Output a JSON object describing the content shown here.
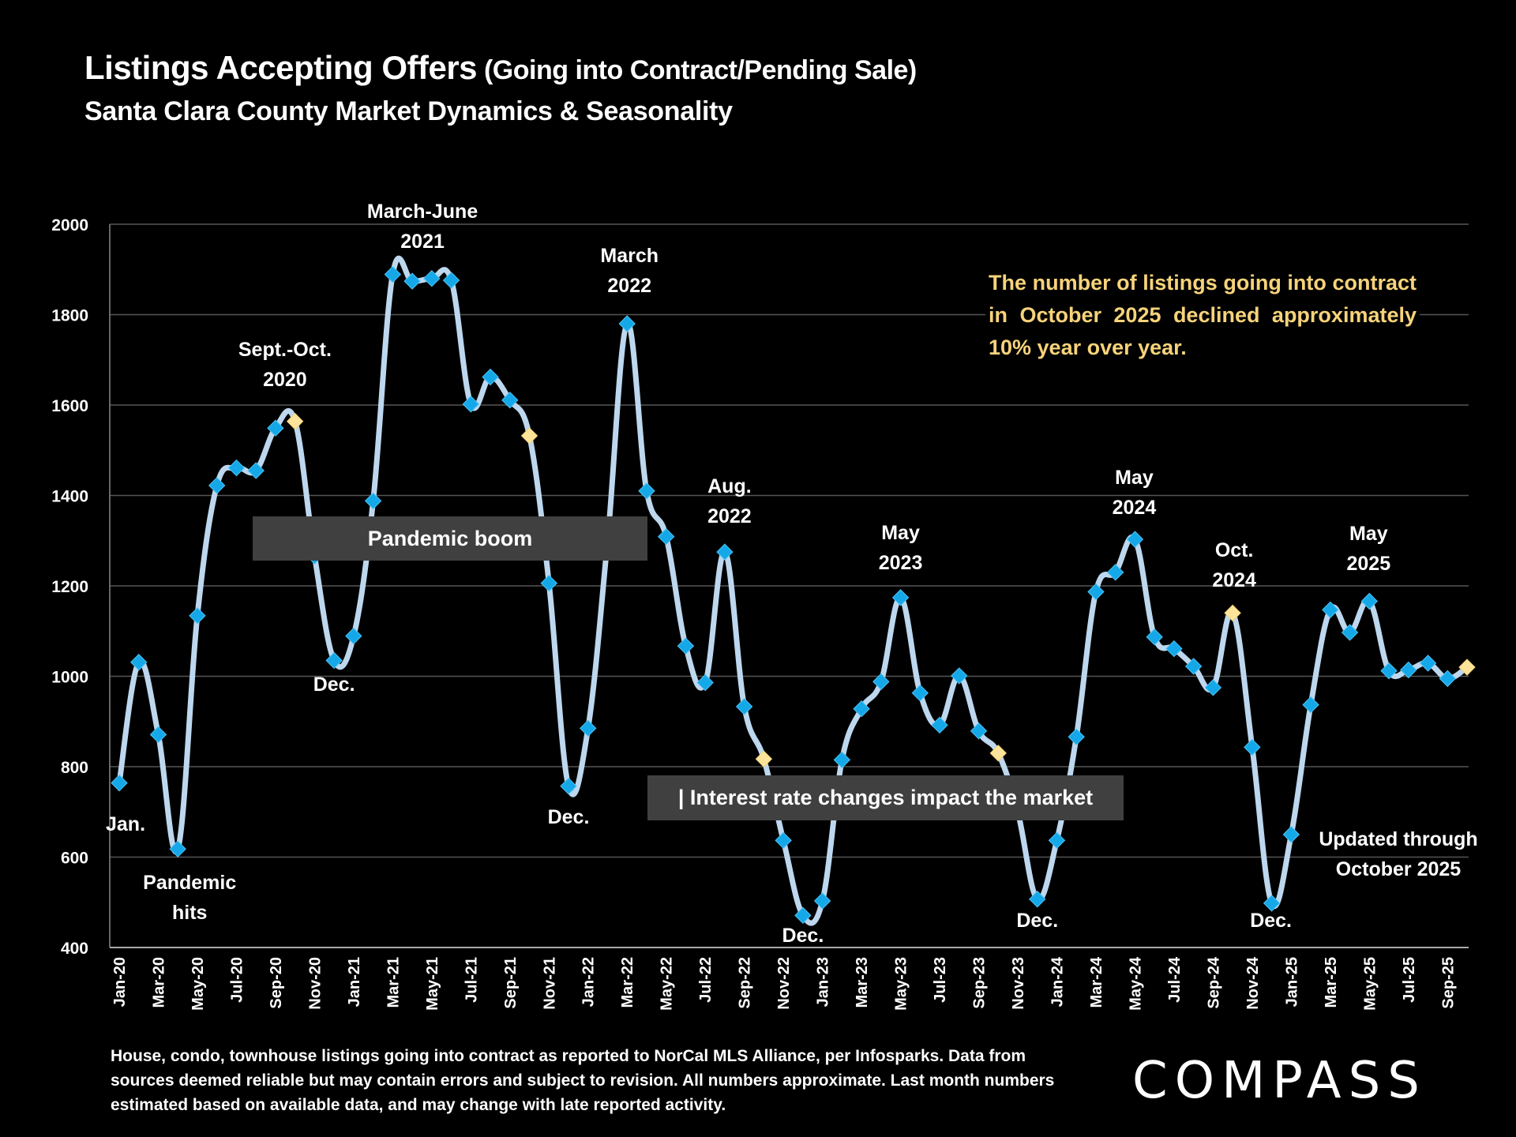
{
  "header": {
    "title": "Listings Accepting Offers",
    "title_suffix": " (Going into Contract/Pending Sale)",
    "subtitle": "Santa Clara County Market Dynamics & Seasonality"
  },
  "callout": "The number of listings going into contract in October 2025 declined approximately 10% year over year.",
  "bands": {
    "pandemic": "Pandemic boom",
    "rates": "| Interest rate changes impact the market"
  },
  "footnote": "House, condo, townhouse listings going into contract as reported to NorCal MLS Alliance, per Infosparks. Data from sources deemed reliable but may contain errors and subject to revision. All numbers approximate. Last month numbers estimated based on available data, and may change with late reported activity.",
  "logo": "COMPASS",
  "colors": {
    "line": "#bdd7ee",
    "marker": "#15a8e8",
    "marker_highlight": "#fde49a",
    "callout_text": "#f7d37a",
    "band_bg": "#404040",
    "grid": "#555555"
  },
  "chart_data": {
    "type": "line",
    "title": "Listings Accepting Offers (Going into Contract/Pending Sale)",
    "subtitle": "Santa Clara County Market Dynamics & Seasonality",
    "xlabel": "",
    "ylabel": "",
    "ylim": [
      400,
      2000
    ],
    "yticks": [
      400,
      600,
      800,
      1000,
      1200,
      1400,
      1600,
      1800,
      2000
    ],
    "grid": true,
    "x": [
      "Jan-20",
      "Feb-20",
      "Mar-20",
      "Apr-20",
      "May-20",
      "Jun-20",
      "Jul-20",
      "Aug-20",
      "Sep-20",
      "Oct-20",
      "Nov-20",
      "Dec-20",
      "Jan-21",
      "Feb-21",
      "Mar-21",
      "Apr-21",
      "May-21",
      "Jun-21",
      "Jul-21",
      "Aug-21",
      "Sep-21",
      "Oct-21",
      "Nov-21",
      "Dec-21",
      "Jan-22",
      "Feb-22",
      "Mar-22",
      "Apr-22",
      "May-22",
      "Jun-22",
      "Jul-22",
      "Aug-22",
      "Sep-22",
      "Oct-22",
      "Nov-22",
      "Dec-22",
      "Jan-23",
      "Feb-23",
      "Mar-23",
      "Apr-23",
      "May-23",
      "Jun-23",
      "Jul-23",
      "Aug-23",
      "Sep-23",
      "Oct-23",
      "Nov-23",
      "Dec-23",
      "Jan-24",
      "Feb-24",
      "Mar-24",
      "Apr-24",
      "May-24",
      "Jun-24",
      "Jul-24",
      "Aug-24",
      "Sep-24",
      "Oct-24",
      "Nov-24",
      "Dec-24",
      "Jan-25",
      "Feb-25",
      "Mar-25",
      "Apr-25",
      "May-25",
      "Jun-25",
      "Jul-25",
      "Aug-25",
      "Sep-25",
      "Oct-25"
    ],
    "xtick_labels": [
      "Jan-20",
      "Mar-20",
      "May-20",
      "Jul-20",
      "Sep-20",
      "Nov-20",
      "Jan-21",
      "Mar-21",
      "May-21",
      "Jul-21",
      "Sep-21",
      "Nov-21",
      "Jan-22",
      "Mar-22",
      "May-22",
      "Jul-22",
      "Sep-22",
      "Nov-22",
      "Jan-23",
      "Mar-23",
      "May-23",
      "Jul-23",
      "Sep-23",
      "Nov-23",
      "Jan-24",
      "Mar-24",
      "May-24",
      "Jul-24",
      "Sep-24",
      "Nov-24",
      "Jan-25",
      "Mar-25",
      "May-25",
      "Jul-25",
      "Sep-25"
    ],
    "series": [
      {
        "name": "Listings going into contract",
        "values": [
          764,
          1031,
          871,
          618,
          1134,
          1422,
          1461,
          1455,
          1549,
          1564,
          1266,
          1035,
          1089,
          1388,
          1889,
          1874,
          1880,
          1876,
          1602,
          1662,
          1611,
          1532,
          1206,
          757,
          885,
          1300,
          1780,
          1410,
          1309,
          1067,
          986,
          1275,
          933,
          817,
          637,
          471,
          503,
          815,
          928,
          988,
          1174,
          963,
          892,
          1001,
          879,
          830,
          700,
          507,
          637,
          866,
          1187,
          1230,
          1303,
          1087,
          1061,
          1022,
          975,
          1140,
          843,
          498,
          650,
          937,
          1147,
          1097,
          1166,
          1012,
          1014,
          1029,
          995,
          1020
        ],
        "highlighted": [
          "Oct-20",
          "Oct-21",
          "Oct-22",
          "Oct-23",
          "Oct-24",
          "Oct-25"
        ]
      }
    ],
    "annotations": [
      {
        "text": [
          "Jan."
        ],
        "at": "Jan-20"
      },
      {
        "text": [
          "Pandemic",
          "hits"
        ],
        "at": "Apr-20"
      },
      {
        "text": [
          "Sept.-Oct.",
          "2020"
        ],
        "at": "Sep-20"
      },
      {
        "text": [
          "Dec."
        ],
        "at": "Dec-20"
      },
      {
        "text": [
          "March-June",
          "2021"
        ],
        "at": "Apr-21"
      },
      {
        "text": [
          "Dec."
        ],
        "at": "Dec-21"
      },
      {
        "text": [
          "March",
          "2022"
        ],
        "at": "Mar-22"
      },
      {
        "text": [
          "Aug.",
          "2022"
        ],
        "at": "Aug-22"
      },
      {
        "text": [
          "Dec."
        ],
        "at": "Dec-22"
      },
      {
        "text": [
          "May",
          "2023"
        ],
        "at": "May-23"
      },
      {
        "text": [
          "Dec."
        ],
        "at": "Dec-23"
      },
      {
        "text": [
          "May",
          "2024"
        ],
        "at": "May-24"
      },
      {
        "text": [
          "Oct.",
          "2024"
        ],
        "at": "Oct-24"
      },
      {
        "text": [
          "Dec."
        ],
        "at": "Dec-24"
      },
      {
        "text": [
          "May",
          "2025"
        ],
        "at": "May-25"
      },
      {
        "text": [
          "Updated through",
          "October 2025"
        ],
        "at": "Oct-25"
      }
    ]
  }
}
